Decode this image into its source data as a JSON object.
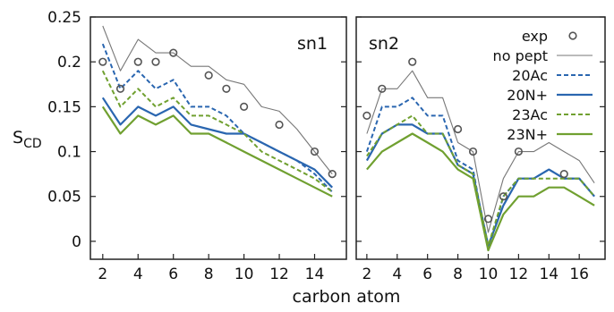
{
  "chart_data": [
    {
      "panel": "sn1",
      "type": "line",
      "panel_label": "sn1",
      "xlabel": "carbon atom",
      "ylabel": "S",
      "ylabel_subscript": "CD",
      "xlim": [
        1.3,
        15.8
      ],
      "ylim": [
        -0.02,
        0.25
      ],
      "x_ticks": [
        2,
        4,
        6,
        8,
        10,
        12,
        14
      ],
      "y_ticks": [
        0,
        0.05,
        0.1,
        0.15,
        0.2,
        0.25
      ],
      "y_tick_labels": [
        "0",
        "0.05",
        "0.1",
        "0.15",
        "0.2",
        "0.25"
      ],
      "grid": false,
      "series": [
        {
          "name": "exp",
          "style": "circle",
          "color": "#555555",
          "x": [
            2,
            3,
            4,
            5,
            6,
            8,
            9,
            10,
            12,
            14,
            15
          ],
          "y": [
            0.2,
            0.17,
            0.2,
            0.2,
            0.21,
            0.185,
            0.17,
            0.15,
            0.13,
            0.1,
            0.075
          ]
        },
        {
          "name": "no pept",
          "style": "solid-thin",
          "color": "#777777",
          "x": [
            2,
            3,
            4,
            5,
            6,
            7,
            8,
            9,
            10,
            11,
            12,
            13,
            14,
            15
          ],
          "y": [
            0.24,
            0.19,
            0.225,
            0.21,
            0.21,
            0.195,
            0.195,
            0.18,
            0.175,
            0.15,
            0.145,
            0.125,
            0.1,
            0.075
          ]
        },
        {
          "name": "20Ac",
          "style": "dashed",
          "color": "#2a66b0",
          "x": [
            2,
            3,
            4,
            5,
            6,
            7,
            8,
            9,
            10,
            11,
            12,
            13,
            14,
            15
          ],
          "y": [
            0.22,
            0.17,
            0.19,
            0.17,
            0.18,
            0.15,
            0.15,
            0.14,
            0.12,
            0.11,
            0.1,
            0.09,
            0.075,
            0.055
          ]
        },
        {
          "name": "20N+",
          "style": "solid",
          "color": "#2a66b0",
          "x": [
            2,
            3,
            4,
            5,
            6,
            7,
            8,
            9,
            10,
            11,
            12,
            13,
            14,
            15
          ],
          "y": [
            0.16,
            0.13,
            0.15,
            0.14,
            0.15,
            0.13,
            0.125,
            0.12,
            0.12,
            0.11,
            0.1,
            0.09,
            0.08,
            0.06
          ]
        },
        {
          "name": "23Ac",
          "style": "dashed",
          "color": "#70a030",
          "x": [
            2,
            3,
            4,
            5,
            6,
            7,
            8,
            9,
            10,
            11,
            12,
            13,
            14,
            15
          ],
          "y": [
            0.19,
            0.15,
            0.17,
            0.15,
            0.16,
            0.14,
            0.14,
            0.13,
            0.12,
            0.1,
            0.09,
            0.08,
            0.07,
            0.055
          ]
        },
        {
          "name": "23N+",
          "style": "solid",
          "color": "#70a030",
          "x": [
            2,
            3,
            4,
            5,
            6,
            7,
            8,
            9,
            10,
            11,
            12,
            13,
            14,
            15
          ],
          "y": [
            0.15,
            0.12,
            0.14,
            0.13,
            0.14,
            0.12,
            0.12,
            0.11,
            0.1,
            0.09,
            0.08,
            0.07,
            0.06,
            0.05
          ]
        }
      ]
    },
    {
      "panel": "sn2",
      "type": "line",
      "panel_label": "sn2",
      "xlim": [
        1.3,
        17.7
      ],
      "ylim": [
        -0.02,
        0.25
      ],
      "x_ticks": [
        2,
        4,
        6,
        8,
        10,
        12,
        14,
        16
      ],
      "grid": false,
      "legend": {
        "position": "top-right",
        "entries": [
          {
            "name": "exp",
            "style": "circle",
            "color": "#555555"
          },
          {
            "name": "no pept",
            "style": "solid-thin",
            "color": "#777777"
          },
          {
            "name": "20Ac",
            "style": "dashed",
            "color": "#2a66b0"
          },
          {
            "name": "20N+",
            "style": "solid",
            "color": "#2a66b0"
          },
          {
            "name": "23Ac",
            "style": "dashed",
            "color": "#70a030"
          },
          {
            "name": "23N+",
            "style": "solid",
            "color": "#70a030"
          }
        ]
      },
      "series": [
        {
          "name": "exp",
          "style": "circle",
          "color": "#555555",
          "x": [
            2,
            3,
            5,
            8,
            9,
            10,
            11,
            12,
            15
          ],
          "y": [
            0.14,
            0.17,
            0.2,
            0.125,
            0.1,
            0.025,
            0.05,
            0.1,
            0.075
          ]
        },
        {
          "name": "no pept",
          "style": "solid-thin",
          "color": "#777777",
          "x": [
            2,
            3,
            4,
            5,
            6,
            7,
            8,
            9,
            10,
            11,
            12,
            13,
            14,
            15,
            16,
            17
          ],
          "y": [
            0.12,
            0.17,
            0.17,
            0.19,
            0.16,
            0.16,
            0.11,
            0.1,
            0.01,
            0.07,
            0.1,
            0.1,
            0.11,
            0.1,
            0.09,
            0.065
          ]
        },
        {
          "name": "20Ac",
          "style": "dashed",
          "color": "#2a66b0",
          "x": [
            2,
            3,
            4,
            5,
            6,
            7,
            8,
            9,
            10,
            11,
            12,
            13,
            14,
            15,
            16,
            17
          ],
          "y": [
            0.1,
            0.15,
            0.15,
            0.16,
            0.14,
            0.14,
            0.09,
            0.08,
            -0.01,
            0.05,
            0.07,
            0.07,
            0.08,
            0.07,
            0.07,
            0.05
          ]
        },
        {
          "name": "20N+",
          "style": "solid",
          "color": "#2a66b0",
          "x": [
            2,
            3,
            4,
            5,
            6,
            7,
            8,
            9,
            10,
            11,
            12,
            13,
            14,
            15,
            16,
            17
          ],
          "y": [
            0.09,
            0.12,
            0.13,
            0.13,
            0.12,
            0.12,
            0.085,
            0.075,
            -0.005,
            0.04,
            0.07,
            0.07,
            0.08,
            0.07,
            0.07,
            0.05
          ]
        },
        {
          "name": "23Ac",
          "style": "dashed",
          "color": "#70a030",
          "x": [
            2,
            3,
            4,
            5,
            6,
            7,
            8,
            9,
            10,
            11,
            12,
            13,
            14,
            15,
            16,
            17
          ],
          "y": [
            0.095,
            0.12,
            0.13,
            0.14,
            0.12,
            0.12,
            0.085,
            0.075,
            -0.005,
            0.05,
            0.07,
            0.07,
            0.07,
            0.07,
            0.07,
            0.05
          ]
        },
        {
          "name": "23N+",
          "style": "solid",
          "color": "#70a030",
          "x": [
            2,
            3,
            4,
            5,
            6,
            7,
            8,
            9,
            10,
            11,
            12,
            13,
            14,
            15,
            16,
            17
          ],
          "y": [
            0.08,
            0.1,
            0.11,
            0.12,
            0.11,
            0.1,
            0.08,
            0.07,
            -0.01,
            0.03,
            0.05,
            0.05,
            0.06,
            0.06,
            0.05,
            0.04
          ]
        }
      ]
    }
  ]
}
